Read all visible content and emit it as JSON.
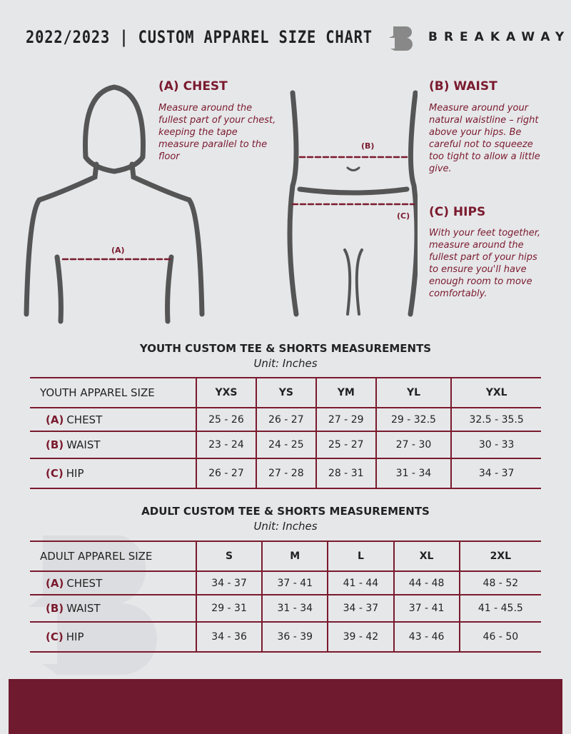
{
  "header": {
    "title": "2022/2023 | CUSTOM APPAREL SIZE CHART",
    "brand": "BREAKAWAY"
  },
  "chest": {
    "heading": "(A) CHEST",
    "text": "Measure around the fullest part of your chest, keeping the tape measure parallel to the floor",
    "marker": "(A)"
  },
  "waist": {
    "heading": "(B) WAIST",
    "text": "Measure around your natural waistline – right above your hips. Be careful not to squeeze too tight to allow a little give.",
    "marker": "(B)"
  },
  "hips": {
    "heading": "(C) HIPS",
    "text": "With your feet together, measure around the fullest part of your hips to ensure you'll have enough room to move comfortably.",
    "marker": "(C)"
  },
  "youth": {
    "title": "YOUTH CUSTOM TEE & SHORTS MEASUREMENTS",
    "unit": "Unit: Inches",
    "size_label": "YOUTH APPAREL SIZE",
    "sizes": [
      "YXS",
      "YS",
      "YM",
      "YL",
      "YXL"
    ],
    "rows": [
      {
        "letter": "(A)",
        "name": "CHEST",
        "values": [
          "25 - 26",
          "26 - 27",
          "27 - 29",
          "29 - 32.5",
          "32.5 - 35.5"
        ]
      },
      {
        "letter": "(B)",
        "name": "WAIST",
        "values": [
          "23 - 24",
          "24 - 25",
          "25 - 27",
          "27 - 30",
          "30 - 33"
        ]
      },
      {
        "letter": "(C)",
        "name": "HIP",
        "values": [
          "26 - 27",
          "27 - 28",
          "28 - 31",
          "31 - 34",
          "34 - 37"
        ]
      }
    ]
  },
  "adult": {
    "title": "ADULT CUSTOM TEE & SHORTS MEASUREMENTS",
    "unit": "Unit: Inches",
    "size_label": "ADULT APPAREL SIZE",
    "sizes": [
      "S",
      "M",
      "L",
      "XL",
      "2XL"
    ],
    "rows": [
      {
        "letter": "(A)",
        "name": "CHEST",
        "values": [
          "34 - 37",
          "37 - 41",
          "41 - 44",
          "44 - 48",
          "48 - 52"
        ]
      },
      {
        "letter": "(B)",
        "name": "WAIST",
        "values": [
          "29 - 31",
          "31 - 34",
          "34 - 37",
          "37 - 41",
          "41 - 45.5"
        ]
      },
      {
        "letter": "(C)",
        "name": "HIP",
        "values": [
          "34 - 36",
          "36 - 39",
          "39 - 42",
          "43 - 46",
          "46 - 50"
        ]
      }
    ]
  },
  "colors": {
    "accent": "#7a1a2e",
    "background": "#e6e7e9"
  }
}
